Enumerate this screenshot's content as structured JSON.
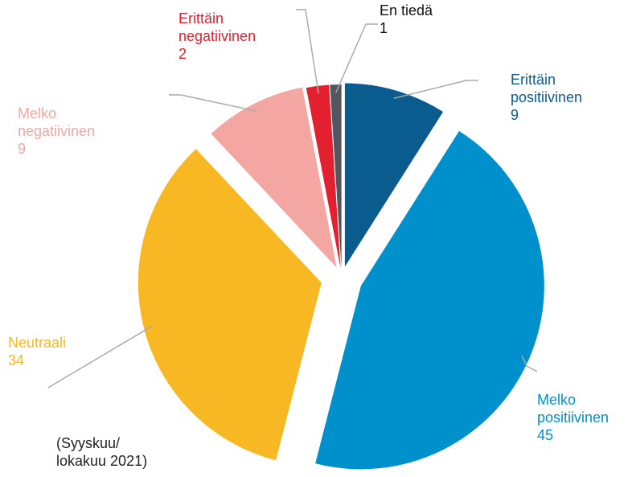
{
  "chart_data": {
    "type": "pie",
    "categories": [
      "Erittäin positiivinen",
      "Melko positiivinen",
      "Neutraali",
      "Melko negatiivinen",
      "Erittäin negatiivinen",
      "En tiedä"
    ],
    "values": [
      9,
      45,
      34,
      9,
      2,
      1
    ],
    "colors": [
      "#0a5c8f",
      "#0090cc",
      "#f8b823",
      "#f4a6a2",
      "#e3202f",
      "#55555f"
    ],
    "note": "(Syyskuu/ lokakuu 2021)"
  }
}
